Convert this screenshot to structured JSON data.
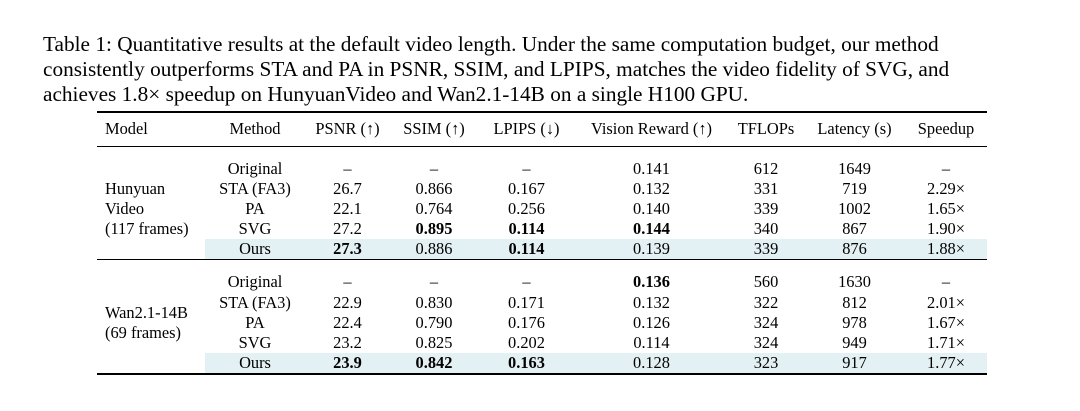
{
  "caption": {
    "lines": [
      "Table 1: Quantitative results at the default video length.  Under the same computation budget, our method",
      "consistently outperforms STA and PA in PSNR, SSIM, and LPIPS, matches the video fidelity of SVG, and",
      "achieves 1.8× speedup on HunyuanVideo and Wan2.1-14B on a single H100 GPU."
    ]
  },
  "table": {
    "headers": {
      "model": "Model",
      "method": "Method",
      "psnr": "PSNR (↑)",
      "ssim": "SSIM (↑)",
      "lpips": "LPIPS (↓)",
      "vision_reward": "Vision Reward (↑)",
      "tflops": "TFLOPs",
      "latency": "Latency (s)",
      "speedup": "Speedup"
    },
    "groups": [
      {
        "model_lines": [
          "Hunyuan",
          "Video",
          "(117 frames)"
        ],
        "rows": [
          {
            "method": "Original",
            "psnr": "–",
            "ssim": "–",
            "lpips": "–",
            "vision_reward": "0.141",
            "tflops": "612",
            "latency": "1649",
            "speedup": "–"
          },
          {
            "method": "STA (FA3)",
            "psnr": "26.7",
            "ssim": "0.866",
            "lpips": "0.167",
            "vision_reward": "0.132",
            "tflops": "331",
            "latency": "719",
            "speedup": "2.29×"
          },
          {
            "method": "PA",
            "psnr": "22.1",
            "ssim": "0.764",
            "lpips": "0.256",
            "vision_reward": "0.140",
            "tflops": "339",
            "latency": "1002",
            "speedup": "1.65×"
          },
          {
            "method": "SVG",
            "psnr": "27.2",
            "ssim": "0.895",
            "lpips": "0.114",
            "vision_reward": "0.144",
            "tflops": "340",
            "latency": "867",
            "speedup": "1.90×"
          },
          {
            "method": "Ours",
            "psnr": "27.3",
            "ssim": "0.886",
            "lpips": "0.114",
            "vision_reward": "0.139",
            "tflops": "339",
            "latency": "876",
            "speedup": "1.88×"
          }
        ]
      },
      {
        "model_lines": [
          "Wan2.1-14B",
          "(69 frames)"
        ],
        "rows": [
          {
            "method": "Original",
            "psnr": "–",
            "ssim": "–",
            "lpips": "–",
            "vision_reward": "0.136",
            "tflops": "560",
            "latency": "1630",
            "speedup": "–"
          },
          {
            "method": "STA (FA3)",
            "psnr": "22.9",
            "ssim": "0.830",
            "lpips": "0.171",
            "vision_reward": "0.132",
            "tflops": "322",
            "latency": "812",
            "speedup": "2.01×"
          },
          {
            "method": "PA",
            "psnr": "22.4",
            "ssim": "0.790",
            "lpips": "0.176",
            "vision_reward": "0.126",
            "tflops": "324",
            "latency": "978",
            "speedup": "1.67×"
          },
          {
            "method": "SVG",
            "psnr": "23.2",
            "ssim": "0.825",
            "lpips": "0.202",
            "vision_reward": "0.114",
            "tflops": "324",
            "latency": "949",
            "speedup": "1.71×"
          },
          {
            "method": "Ours",
            "psnr": "23.9",
            "ssim": "0.842",
            "lpips": "0.163",
            "vision_reward": "0.128",
            "tflops": "323",
            "latency": "917",
            "speedup": "1.77×"
          }
        ]
      }
    ],
    "highlight_color": "#e3f0f4"
  }
}
